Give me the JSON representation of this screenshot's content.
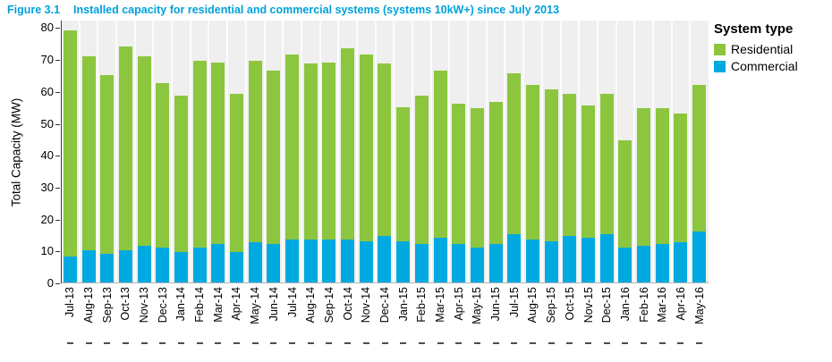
{
  "figure": {
    "label": "Figure 3.1",
    "title": "Installed capacity for residential and commercial systems (systems 10kW+) since July 2013"
  },
  "colors": {
    "residential_green": "#8CC63F",
    "commercial_blue": "#00A9E0",
    "title_blue": "#00A1DC",
    "panel_background": "#EFEFEF"
  },
  "legend": {
    "title": "System type",
    "items": [
      {
        "label": "Residential",
        "color": "#8CC63F"
      },
      {
        "label": "Commercial",
        "color": "#00A9E0"
      }
    ]
  },
  "chart_data": {
    "type": "bar",
    "stacked": true,
    "title": "Installed capacity for residential and commercial systems (systems 10kW+) since July 2013",
    "xlabel": "",
    "ylabel": "Total Capacity (MW)",
    "ylim": [
      0,
      80
    ],
    "y_ticks": [
      0,
      10,
      20,
      30,
      40,
      50,
      60,
      70,
      80
    ],
    "legend_position": "right",
    "grid": "vertical-minor-white",
    "categories": [
      "Jul-13",
      "Aug-13",
      "Sep-13",
      "Oct-13",
      "Nov-13",
      "Dec-13",
      "Jan-14",
      "Feb-14",
      "Mar-14",
      "Apr-14",
      "May-14",
      "Jun-14",
      "Jul-14",
      "Aug-14",
      "Sep-14",
      "Oct-14",
      "Nov-14",
      "Dec-14",
      "Jan-15",
      "Feb-15",
      "Mar-15",
      "Apr-15",
      "May-15",
      "Jun-15",
      "Jul-15",
      "Aug-15",
      "Sep-15",
      "Oct-15",
      "Nov-15",
      "Dec-15",
      "Jan-16",
      "Feb-16",
      "Mar-16",
      "Apr-16",
      "May-16"
    ],
    "series": [
      {
        "name": "Commercial",
        "color": "#00A9E0",
        "values": [
          8,
          10,
          9,
          10,
          11.5,
          11,
          9.5,
          11,
          12,
          9.5,
          12.5,
          12,
          13.5,
          13.5,
          13.5,
          13.5,
          13,
          14.5,
          13,
          12,
          14,
          12,
          11,
          12,
          15,
          13.5,
          13,
          14.5,
          14,
          15,
          11,
          11.5,
          12,
          12.5,
          16
        ]
      },
      {
        "name": "Residential",
        "color": "#8CC63F",
        "values": [
          71,
          61,
          56,
          64,
          59.5,
          51.5,
          49,
          58.5,
          57,
          49.5,
          57,
          54.5,
          58,
          55,
          55.5,
          60,
          58.5,
          54,
          42,
          46.5,
          52.5,
          44,
          43.5,
          44.5,
          50.5,
          48.5,
          47.5,
          44.5,
          41.5,
          44,
          33.5,
          43,
          42.5,
          40.5,
          46
        ]
      }
    ],
    "totals": [
      79,
      71,
      65,
      74,
      71,
      62.5,
      58.5,
      69.5,
      69,
      59,
      69.5,
      66.5,
      71.5,
      68.5,
      69,
      73.5,
      71.5,
      68.5,
      55,
      58.5,
      66.5,
      56,
      54.5,
      56.5,
      65.5,
      62,
      60.5,
      59,
      55.5,
      59,
      44.5,
      54.5,
      54.5,
      53,
      62
    ]
  }
}
